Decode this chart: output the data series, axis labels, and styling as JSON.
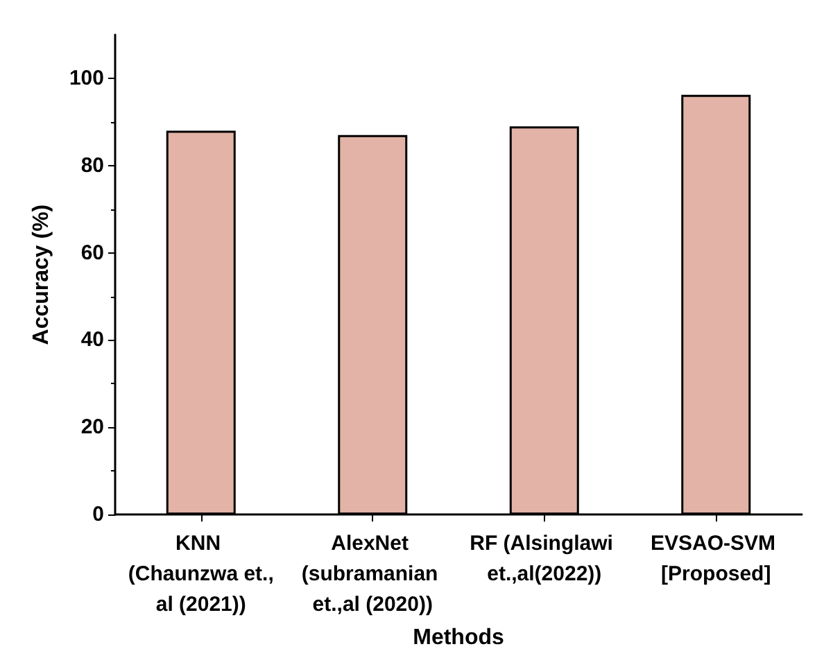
{
  "chart_data": {
    "type": "bar",
    "xlabel": "Methods",
    "ylabel": "Accuracy (%)",
    "categories": [
      "KNN (Chaunzwa et.,al (2021))",
      "AlexNet (subramanian et.,al (2020))",
      "RF (Alsinglawi et.,al(2022))",
      "EVSAO-SVM [Proposed]"
    ],
    "series": [
      {
        "color": "#e2b3a6",
        "values": [
          88,
          87,
          89,
          96.2
        ]
      }
    ],
    "ylim": [
      0,
      110
    ],
    "yticks": [
      0,
      20,
      40,
      60,
      80,
      100
    ],
    "grid": false
  }
}
